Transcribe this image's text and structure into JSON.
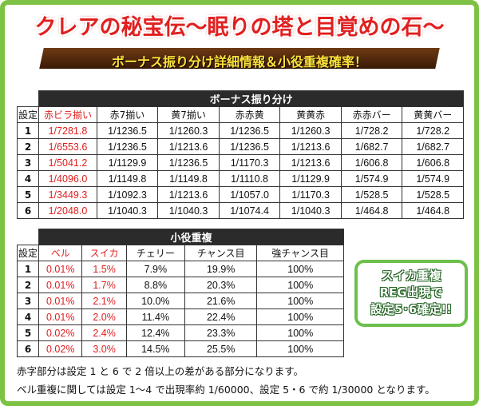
{
  "header": {
    "title": "クレアの秘宝伝～眠りの塔と目覚めの石～",
    "subtitle": "ボーナス振り分け詳細情報＆小役重複確率！"
  },
  "bonus_table": {
    "caption": "ボーナス振り分け",
    "headers": [
      "設定",
      "赤ビラ揃い",
      "赤7揃い",
      "黄7揃い",
      "赤赤黄",
      "黄黄赤",
      "赤赤バー",
      "黄黄バー"
    ],
    "rows": [
      [
        "1",
        "1/7281.8",
        "1/1236.5",
        "1/1260.3",
        "1/1236.5",
        "1/1260.3",
        "1/728.2",
        "1/728.2"
      ],
      [
        "2",
        "1/6553.6",
        "1/1236.5",
        "1/1213.6",
        "1/1236.5",
        "1/1213.6",
        "1/682.7",
        "1/682.7"
      ],
      [
        "3",
        "1/5041.2",
        "1/1129.9",
        "1/1236.5",
        "1/1170.3",
        "1/1213.6",
        "1/606.8",
        "1/606.8"
      ],
      [
        "4",
        "1/4096.0",
        "1/1149.8",
        "1/1149.8",
        "1/1110.8",
        "1/1129.9",
        "1/574.9",
        "1/574.9"
      ],
      [
        "5",
        "1/3449.3",
        "1/1092.3",
        "1/1213.6",
        "1/1057.0",
        "1/1170.3",
        "1/528.5",
        "1/528.5"
      ],
      [
        "6",
        "1/2048.0",
        "1/1040.3",
        "1/1040.3",
        "1/1074.4",
        "1/1040.3",
        "1/464.8",
        "1/464.8"
      ]
    ]
  },
  "sub_table": {
    "caption": "小役重複",
    "headers": [
      "設定",
      "ベル",
      "スイカ",
      "チェリー",
      "チャンス目",
      "強チャンス目"
    ],
    "rows": [
      [
        "1",
        "0.01%",
        "1.5%",
        "7.9%",
        "19.9%",
        "100%"
      ],
      [
        "2",
        "0.01%",
        "1.7%",
        "8.8%",
        "20.3%",
        "100%"
      ],
      [
        "3",
        "0.01%",
        "2.1%",
        "10.0%",
        "21.6%",
        "100%"
      ],
      [
        "4",
        "0.01%",
        "2.0%",
        "11.4%",
        "22.4%",
        "100%"
      ],
      [
        "5",
        "0.02%",
        "2.4%",
        "12.4%",
        "23.3%",
        "100%"
      ],
      [
        "6",
        "0.02%",
        "3.0%",
        "14.5%",
        "25.5%",
        "100%"
      ]
    ]
  },
  "badge": {
    "line1": "スイカ重複",
    "line2": "REG出現で",
    "line3": "設定5･6確定!!"
  },
  "notes": {
    "line1": "赤字部分は設定 1 と 6 で 2 倍以上の差がある部分になります。",
    "line2": "ベル重複に関しては設定 1～4 で出現率約 1/60000、設定 5・6 で約 1/30000 となります。"
  },
  "colors": {
    "accent_red": "#e02020",
    "frame_green": "#7dc242",
    "header_dark": "#2b2b2b"
  }
}
